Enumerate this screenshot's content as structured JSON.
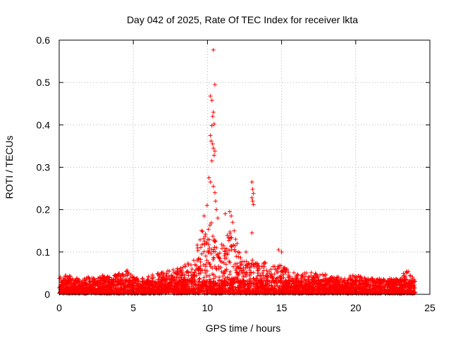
{
  "chart_data": {
    "type": "scatter",
    "title": "Day 042 of 2025, Rate Of TEC Index for receiver lkta",
    "xlabel": "GPS time / hours",
    "ylabel": "ROTI / TECUs",
    "xlim": [
      0,
      25
    ],
    "ylim": [
      0,
      0.6
    ],
    "xticks": [
      0,
      5,
      10,
      15,
      20,
      25
    ],
    "yticks": [
      0,
      0.1,
      0.2,
      0.3,
      0.4,
      0.5,
      0.6
    ],
    "xtick_labels": [
      "0",
      "5",
      "10",
      "15",
      "20",
      "25"
    ],
    "ytick_labels": [
      "0",
      "0.1",
      "0.2",
      "0.3",
      "0.4",
      "0.5",
      "0.6"
    ],
    "grid": true,
    "marker": "+",
    "color": "#ff0000",
    "series": [
      {
        "name": "ROTI",
        "notes": "dense cloud of ~0.00-0.05 values across 0-24 h with enhanced activity 9-14 h",
        "envelope": {
          "x": [
            0.0,
            0.5,
            1.0,
            1.5,
            2.0,
            2.5,
            3.0,
            3.5,
            4.0,
            4.5,
            5.0,
            5.5,
            6.0,
            6.5,
            7.0,
            7.5,
            8.0,
            8.5,
            9.0,
            9.5,
            10.0,
            10.5,
            11.0,
            11.5,
            12.0,
            12.5,
            13.0,
            13.5,
            14.0,
            14.5,
            15.0,
            15.5,
            16.0,
            16.5,
            17.0,
            17.5,
            18.0,
            18.5,
            19.0,
            19.5,
            20.0,
            20.5,
            21.0,
            21.5,
            22.0,
            22.5,
            23.0,
            23.5,
            24.0
          ],
          "y": [
            0.04,
            0.045,
            0.038,
            0.035,
            0.04,
            0.036,
            0.045,
            0.038,
            0.05,
            0.06,
            0.04,
            0.038,
            0.042,
            0.048,
            0.05,
            0.055,
            0.06,
            0.07,
            0.085,
            0.14,
            0.22,
            0.14,
            0.12,
            0.15,
            0.1,
            0.09,
            0.08,
            0.075,
            0.08,
            0.07,
            0.065,
            0.055,
            0.05,
            0.048,
            0.052,
            0.045,
            0.046,
            0.04,
            0.042,
            0.04,
            0.045,
            0.04,
            0.038,
            0.036,
            0.035,
            0.036,
            0.038,
            0.06,
            0.03
          ]
        },
        "highlights": {
          "x": [
            10.4,
            10.5,
            10.2,
            10.3,
            10.4,
            10.35,
            10.45,
            10.3,
            10.2,
            10.25,
            10.35,
            10.4,
            10.5,
            10.45,
            10.3,
            10.1,
            10.2,
            10.4,
            10.5,
            10.55,
            10.6,
            10.7,
            11.2,
            11.5,
            11.6,
            11.7,
            11.8,
            11.9,
            12.0,
            12.6,
            13.0,
            13.05,
            13.1,
            13.0,
            13.05,
            13.1,
            13.0,
            14.8,
            15.0,
            9.6,
            9.8
          ],
          "y": [
            0.577,
            0.495,
            0.468,
            0.458,
            0.43,
            0.42,
            0.402,
            0.398,
            0.375,
            0.362,
            0.355,
            0.345,
            0.338,
            0.328,
            0.315,
            0.275,
            0.265,
            0.255,
            0.24,
            0.22,
            0.2,
            0.18,
            0.19,
            0.195,
            0.185,
            0.17,
            0.15,
            0.13,
            0.12,
            0.1,
            0.265,
            0.248,
            0.238,
            0.228,
            0.22,
            0.212,
            0.145,
            0.105,
            0.1,
            0.15,
            0.12
          ]
        }
      }
    ]
  }
}
